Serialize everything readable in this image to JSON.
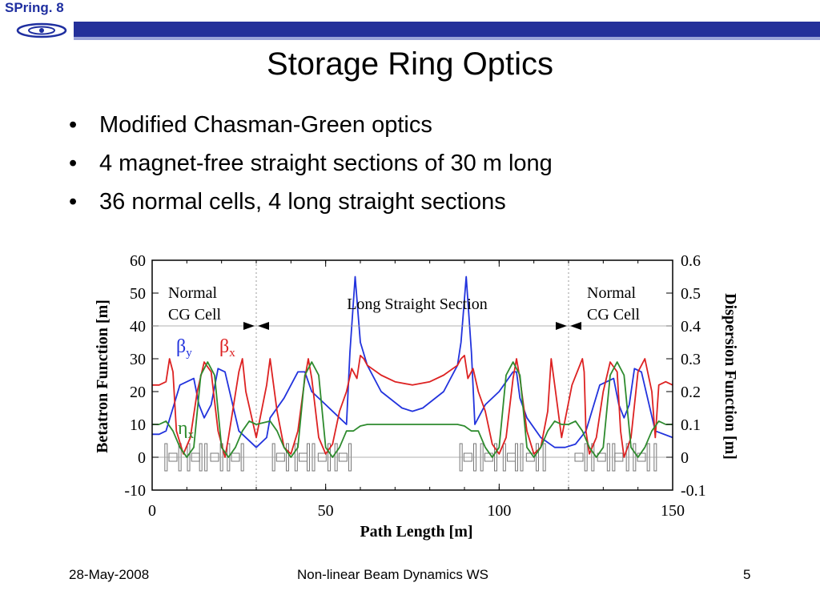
{
  "header": {
    "logo_text": "SPring. 8",
    "title": "Storage Ring Optics",
    "colors": {
      "band": "#24309a",
      "band_light": "#9aa3d8",
      "logo": "#1f2fa0"
    }
  },
  "bullets": [
    "Modified Chasman-Green optics",
    "4 magnet-free straight sections of 30 m long",
    "36 normal cells, 4 long straight sections"
  ],
  "chart_data": {
    "type": "line",
    "xlabel": "Path Length [m]",
    "ylabel": "Betatron Function [m]",
    "y2label": "Dispersion Function [m]",
    "xlim": [
      0,
      150
    ],
    "ylim": [
      -10,
      60
    ],
    "y2lim": [
      -0.1,
      0.6
    ],
    "x_ticks": [
      "0",
      "50",
      "100",
      "150"
    ],
    "y_ticks": [
      "60",
      "50",
      "40",
      "30",
      "20",
      "10",
      "0",
      "-10"
    ],
    "y2_ticks": [
      "0.6",
      "0.5",
      "0.4",
      "0.3",
      "0.2",
      "0.1",
      "0",
      "-0.1"
    ],
    "region_labels": {
      "left_line1": "Normal",
      "left_line2": "CG Cell",
      "middle": "Long Straight Section",
      "right_line1": "Normal",
      "right_line2": "CG Cell"
    },
    "series": [
      {
        "name": "βy",
        "symbol": "β",
        "sub": "y",
        "color": "#2233dd",
        "x": [
          0,
          2,
          4,
          8,
          12,
          13.5,
          15,
          17,
          19,
          21,
          25,
          30,
          33,
          34,
          38,
          42,
          44,
          46,
          50,
          54,
          56,
          57,
          58.5,
          60,
          62,
          66,
          72,
          75,
          78,
          84,
          88,
          89,
          90.5,
          92,
          93,
          94,
          96,
          100,
          104,
          105,
          106,
          108,
          112,
          116,
          119,
          122,
          125,
          129,
          133,
          134.5,
          136,
          137.5,
          139,
          141,
          145,
          150
        ],
        "y": [
          7,
          7,
          8,
          22,
          24,
          16,
          12,
          16,
          27,
          26,
          8,
          3,
          6,
          12,
          18,
          26,
          26,
          20,
          16,
          12,
          10,
          32,
          55,
          35,
          28,
          20,
          15,
          14,
          15,
          20,
          28,
          35,
          55,
          32,
          10,
          12,
          16,
          20,
          26,
          26,
          18,
          12,
          6,
          3,
          3,
          4,
          8,
          22,
          24,
          16,
          12,
          16,
          27,
          26,
          8,
          6
        ]
      },
      {
        "name": "βx",
        "symbol": "β",
        "sub": "x",
        "color": "#dd2222",
        "x": [
          0,
          2,
          4,
          5,
          6,
          7,
          9,
          11,
          13,
          15,
          17,
          19,
          21,
          22,
          25,
          26,
          27,
          30,
          33,
          34,
          36,
          38,
          40,
          42,
          44,
          45,
          46,
          48,
          50,
          52,
          54,
          56,
          57.5,
          59,
          60,
          61,
          62,
          66,
          70,
          75,
          80,
          84,
          88,
          89,
          90,
          91,
          92.5,
          94,
          96,
          98,
          100,
          102,
          104,
          105,
          106,
          108,
          110,
          112,
          114,
          115,
          116,
          118,
          121,
          124,
          124.5,
          125,
          126,
          128,
          130,
          132,
          134,
          135,
          136,
          138,
          140,
          142,
          144,
          145,
          146,
          148,
          150
        ],
        "y": [
          22,
          22,
          23,
          30,
          26,
          8,
          1,
          6,
          20,
          29,
          26,
          8,
          0,
          6,
          26,
          30,
          20,
          6,
          22,
          30,
          14,
          3,
          1,
          8,
          24,
          30,
          24,
          6,
          1,
          4,
          14,
          20,
          27,
          24,
          31,
          30,
          28,
          25,
          23,
          22,
          23,
          25,
          28,
          30,
          31,
          24,
          27,
          20,
          14,
          4,
          1,
          6,
          24,
          30,
          24,
          8,
          1,
          3,
          14,
          30,
          22,
          6,
          22,
          30,
          26,
          8,
          1,
          6,
          20,
          29,
          26,
          8,
          0,
          6,
          26,
          30,
          20,
          6,
          22,
          23,
          22
        ]
      },
      {
        "name": "ηx",
        "symbol": "η",
        "sub": "x",
        "color": "#2e8b2e",
        "x": [
          0,
          2,
          4,
          6,
          8,
          10,
          12,
          14,
          16,
          18,
          20,
          22,
          24,
          26,
          28,
          30,
          34,
          36,
          38,
          40,
          42,
          44,
          46,
          48,
          50,
          52,
          54,
          56,
          58,
          60,
          62,
          66,
          75,
          84,
          88,
          90,
          92,
          94,
          96,
          98,
          100,
          102,
          104,
          106,
          108,
          110,
          112,
          114,
          116,
          118,
          120,
          122,
          124,
          126,
          128,
          130,
          132,
          134,
          136,
          138,
          140,
          142,
          144,
          146,
          148,
          150
        ],
        "y": [
          0.1,
          0.1,
          0.11,
          0.08,
          0.03,
          0.0,
          0.03,
          0.25,
          0.29,
          0.25,
          0.03,
          0.0,
          0.03,
          0.08,
          0.11,
          0.1,
          0.11,
          0.08,
          0.03,
          0.0,
          0.03,
          0.25,
          0.29,
          0.25,
          0.03,
          0.0,
          0.03,
          0.08,
          0.08,
          0.095,
          0.1,
          0.1,
          0.1,
          0.1,
          0.1,
          0.095,
          0.08,
          0.08,
          0.03,
          0.0,
          0.03,
          0.25,
          0.29,
          0.25,
          0.03,
          0.0,
          0.03,
          0.08,
          0.11,
          0.1,
          0.1,
          0.11,
          0.08,
          0.03,
          0.0,
          0.03,
          0.25,
          0.29,
          0.25,
          0.03,
          0.0,
          0.03,
          0.08,
          0.11,
          0.1,
          0.1
        ]
      }
    ],
    "magnet_blocks_x": [
      4,
      6,
      8,
      10.5,
      12.5,
      14,
      15.5,
      18,
      20,
      22,
      24,
      26,
      35,
      37,
      39,
      41.5,
      43.5,
      45,
      46.5,
      49,
      51,
      53,
      55,
      57,
      89,
      91,
      93,
      95,
      97,
      99,
      101.5,
      103.5,
      105,
      106.5,
      109,
      111,
      113,
      123,
      125,
      127,
      129.5,
      131.5,
      133,
      134.5,
      137,
      139,
      141,
      143,
      145
    ],
    "grid": "vertical dotted lines at cell boundaries",
    "legend": "inline labels"
  },
  "footer": {
    "date": "28-May-2008",
    "event": "Non-linear Beam Dynamics WS",
    "page": "5"
  }
}
